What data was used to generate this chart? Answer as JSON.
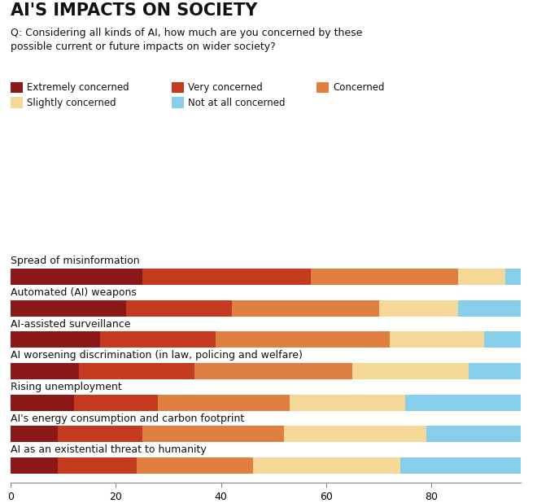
{
  "title": "AI'S IMPACTS ON SOCIETY",
  "subtitle": "Q: Considering all kinds of AI, how much are you concerned by these\npossible current or future impacts on wider society?",
  "categories": [
    "Spread of misinformation",
    "Automated (AI) weapons",
    "AI-assisted surveillance",
    "AI worsening discrimination (in law, policing and welfare)",
    "Rising unemployment",
    "AI's energy consumption and carbon footprint",
    "AI as an existential threat to humanity"
  ],
  "legend_labels": [
    "Extremely concerned",
    "Very concerned",
    "Concerned",
    "Slightly concerned",
    "Not at all concerned"
  ],
  "colors": [
    "#8B1818",
    "#C43A1E",
    "#E08040",
    "#F5D898",
    "#87CEEB"
  ],
  "data": [
    [
      25,
      32,
      28,
      9,
      3
    ],
    [
      22,
      20,
      28,
      15,
      12
    ],
    [
      17,
      22,
      33,
      18,
      9
    ],
    [
      13,
      22,
      30,
      22,
      12
    ],
    [
      12,
      16,
      25,
      22,
      22
    ],
    [
      9,
      16,
      27,
      27,
      19
    ],
    [
      9,
      15,
      22,
      28,
      24
    ]
  ],
  "xlim": [
    0,
    97
  ],
  "xticks": [
    0,
    20,
    40,
    60,
    80
  ],
  "background_color": "#FFFFFF",
  "bar_height": 0.52,
  "title_fontsize": 15,
  "subtitle_fontsize": 9,
  "label_fontsize": 9,
  "legend_fontsize": 8.5,
  "tick_fontsize": 9
}
